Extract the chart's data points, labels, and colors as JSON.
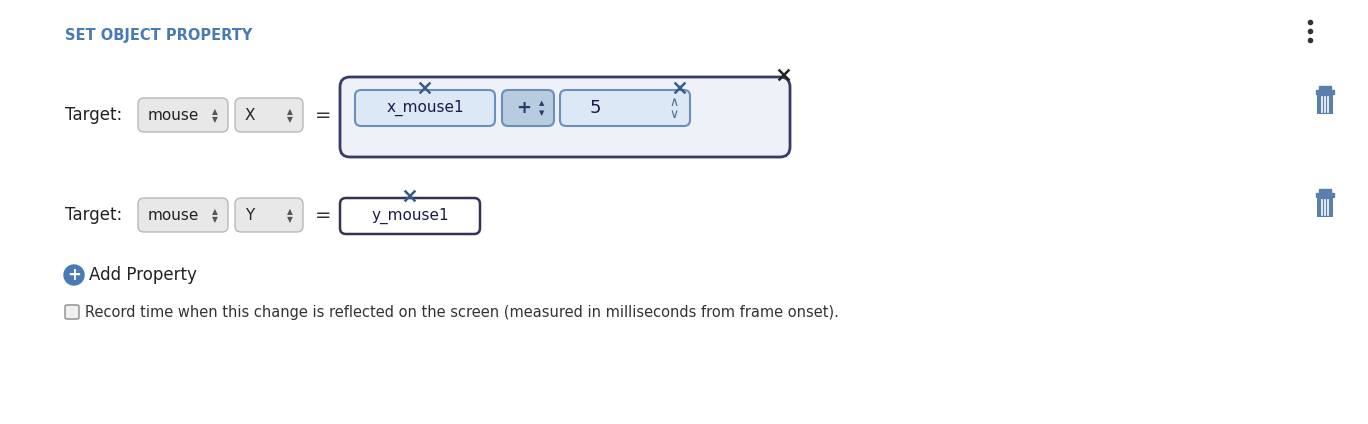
{
  "title": "SET OBJECT PROPERTY",
  "title_color": "#4a7ab5",
  "title_fontsize": 10.5,
  "bg_color": "#ffffff",
  "row1": {
    "target_label": "Target:",
    "dropdown1_text": "mouse",
    "dropdown2_text": "X",
    "equals": "=",
    "expr_box": {
      "items": [
        {
          "type": "var_box",
          "text": "x_mouse1",
          "border_color": "#6a8fbb",
          "bg": "#dce8f5"
        },
        {
          "type": "op_box",
          "text": "+ ↕",
          "border_color": "#6a8fbb",
          "bg": "#b8ccdf"
        },
        {
          "type": "num_box",
          "text": "5",
          "border_color": "#6a8fbb",
          "bg": "#dce8f5"
        }
      ],
      "outer_border": "#3a3a6a",
      "outer_bg": "#eef2f8"
    }
  },
  "row2": {
    "target_label": "Target:",
    "dropdown1_text": "mouse",
    "dropdown2_text": "Y",
    "equals": "=",
    "var_box": {
      "text": "y_mouse1",
      "border_color": "#3a3a6a",
      "bg": "#ffffff"
    }
  },
  "add_property": {
    "text": "Add Property",
    "icon_color": "#4a7ab5"
  },
  "record_text": "Record time when this change is reflected on the screen (measured in milliseconds from frame onset).",
  "trash_color": "#5a7faa",
  "dots_color": "#333333"
}
